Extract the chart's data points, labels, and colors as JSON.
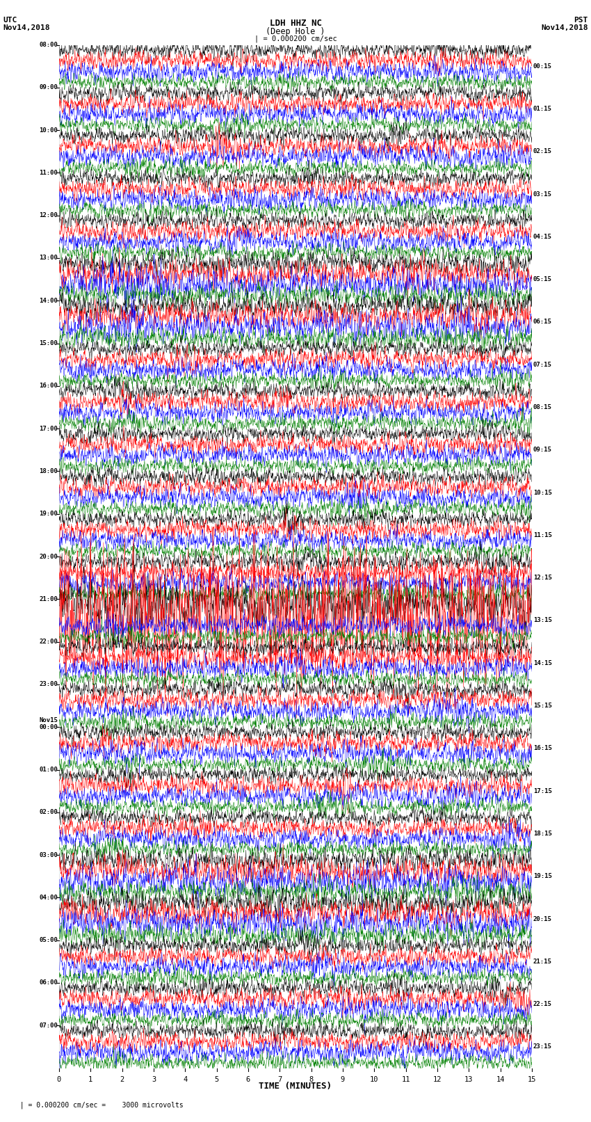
{
  "title_line1": "LDH HHZ NC",
  "title_line2": "(Deep Hole )",
  "scale_text": "| = 0.000200 cm/sec",
  "xlabel": "TIME (MINUTES)",
  "utc_label": "UTC",
  "utc_date": "Nov14,2018",
  "pst_label": "PST",
  "pst_date": "Nov14,2018",
  "left_times": [
    "08:00",
    "09:00",
    "10:00",
    "11:00",
    "12:00",
    "13:00",
    "14:00",
    "15:00",
    "16:00",
    "17:00",
    "18:00",
    "19:00",
    "20:00",
    "21:00",
    "22:00",
    "23:00",
    "Nov15\n00:00",
    "01:00",
    "02:00",
    "03:00",
    "04:00",
    "05:00",
    "06:00",
    "07:00"
  ],
  "right_times": [
    "00:15",
    "01:15",
    "02:15",
    "03:15",
    "04:15",
    "05:15",
    "06:15",
    "07:15",
    "08:15",
    "09:15",
    "10:15",
    "11:15",
    "12:15",
    "13:15",
    "14:15",
    "15:15",
    "16:15",
    "17:15",
    "18:15",
    "19:15",
    "20:15",
    "21:15",
    "22:15",
    "23:15"
  ],
  "trace_colors": [
    "black",
    "red",
    "blue",
    "green"
  ],
  "n_rows": 24,
  "traces_per_row": 4,
  "bg_color": "white",
  "fig_width": 8.5,
  "fig_height": 16.13,
  "dpi": 100,
  "bottom_note": "  | = 0.000200 cm/sec =    3000 microvolts"
}
